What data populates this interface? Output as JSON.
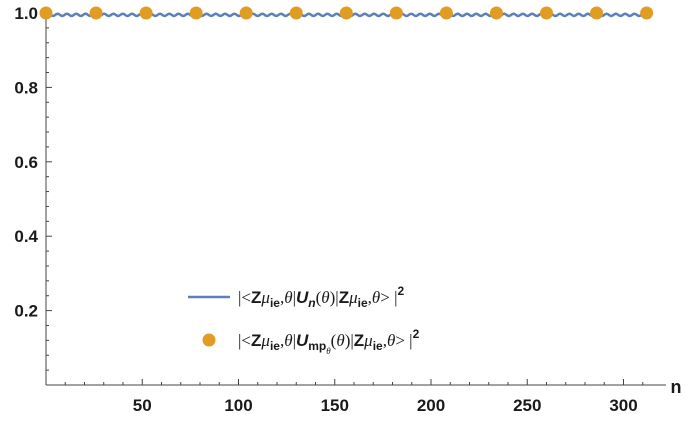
{
  "chart_data": {
    "type": "line",
    "xlabel": "n",
    "ylabel": "",
    "xlim": [
      0,
      320
    ],
    "ylim": [
      0,
      1.0
    ],
    "x_ticks": [
      50,
      100,
      150,
      200,
      250,
      300
    ],
    "y_ticks": [
      0.2,
      0.4,
      0.6,
      0.8,
      1.0
    ],
    "x_tick_labels": [
      "50",
      "100",
      "150",
      "200",
      "250",
      "300"
    ],
    "y_tick_labels": [
      "0.2",
      "0.4",
      "0.6",
      "0.8",
      "1.0"
    ],
    "grid": false,
    "legend_position": "bottom-center",
    "series": [
      {
        "name": "|<Zμie,θ|Un(θ)|Zμie,θ>|²",
        "style": "line",
        "color": "#5E81B5",
        "x_range": [
          0,
          312
        ],
        "y_value": 0.995,
        "oscillation_amplitude": 0.003
      },
      {
        "name": "|<Zμie,θ|Umpθ(θ)|Zμie,θ>|²",
        "style": "points",
        "color": "#E19C24",
        "x": [
          0,
          26,
          52,
          78,
          104,
          130,
          156,
          182,
          208,
          234,
          260,
          286,
          312
        ],
        "y": [
          1,
          1,
          1,
          1,
          1,
          1,
          1,
          1,
          1,
          1,
          1,
          1,
          1
        ]
      }
    ]
  }
}
